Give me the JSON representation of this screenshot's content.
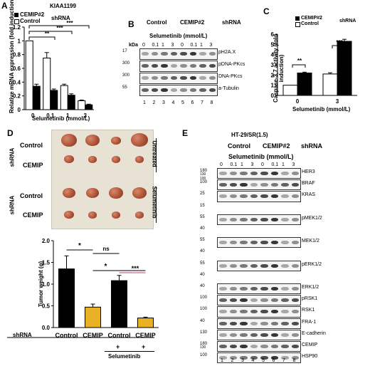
{
  "panels": {
    "A": {
      "letter": "A",
      "gene": "KIAA1199",
      "legend": [
        "CEMIP#2",
        "Control"
      ],
      "shrna_label": "shRNA",
      "ylabel": "Relative mRNA expression (fold induction)",
      "xlabel": "Selumetinib (mmol/L)",
      "yticks": [
        "1.2",
        "1",
        "0.8",
        "0.6",
        "0.4",
        "0.2",
        "0"
      ],
      "xticks": [
        "0",
        "0.1",
        "1",
        "3"
      ],
      "sig": [
        "**",
        "***",
        "***"
      ]
    },
    "B": {
      "letter": "B",
      "group_control": "Control",
      "group_cemip": "CEMIP#2",
      "shrna_label": "shRNA",
      "drug_label": "Selumetinib (mmol/L)",
      "doses": [
        "0",
        "0.1",
        "1",
        "3",
        "0",
        "0.1",
        "1",
        "3"
      ],
      "kda": "kDa",
      "rows": [
        {
          "mw": "17",
          "name": "pH2A.X"
        },
        {
          "mw": "300",
          "name": "pDNA-PKcs"
        },
        {
          "mw": "300",
          "name": "DNA-PKcs"
        },
        {
          "mw": "55",
          "name": "a-Tubulin"
        }
      ],
      "lanes": [
        "1",
        "2",
        "3",
        "4",
        "5",
        "6",
        "7",
        "8"
      ]
    },
    "C": {
      "letter": "C",
      "legend": [
        "CEMIP#2",
        "Control"
      ],
      "shrna_label": "shRNA",
      "ylabel": "Caspase-3,7 activity (fold induction)",
      "xlabel": "Selumetinib (mmol/L)",
      "yticks": [
        "6",
        "5",
        "4",
        "3",
        "2",
        "1",
        "0"
      ],
      "xticks": [
        "0",
        "3"
      ],
      "sig": [
        "**",
        "***"
      ]
    },
    "D": {
      "letter": "D",
      "photo_rows": [
        "Control",
        "CEMIP",
        "Control",
        "CEMIP"
      ],
      "shrna_vertical": "shRNA",
      "untreated": "Untreated",
      "selumetinib": "Selumetinib",
      "ylabel": "Tumor weight (g)",
      "yticks": [
        "2.0",
        "1.5",
        "1.0",
        "0.5",
        "0.0"
      ],
      "xcats": [
        "Control",
        "CEMIP",
        "Control",
        "CEMIP"
      ],
      "shrna_label": "shRNA",
      "plus": [
        "+",
        "+"
      ],
      "drug": "Selumetinib",
      "sig": [
        "*",
        "ns",
        "*",
        "***"
      ]
    },
    "E": {
      "letter": "E",
      "cell_line": "HT-29/SR(1.5)",
      "group_control": "Control",
      "group_cemip": "CEMIP#2",
      "shrna_label": "shRNA",
      "drug_label": "Selumetinib (mmol/L)",
      "doses": [
        "0",
        "0.1",
        "1",
        "3",
        "0",
        "0.1",
        "1",
        "3"
      ],
      "rows": [
        {
          "mw": "180",
          "mw2": "130",
          "mw3": "100",
          "name": "HER3"
        },
        {
          "mw": "100",
          "name": "BRAF"
        },
        {
          "mw": "25",
          "name": "KRAS"
        },
        {
          "mw": "15",
          "name": ""
        },
        {
          "mw": "55",
          "name": "pMEK1/2"
        },
        {
          "mw": "40",
          "name": ""
        },
        {
          "mw": "55",
          "name": "MEK1/2"
        },
        {
          "mw": "40",
          "name": ""
        },
        {
          "mw": "55",
          "name": "pERK1/2"
        },
        {
          "mw": "40",
          "name": ""
        },
        {
          "mw": "40",
          "name": "ERK1/2"
        },
        {
          "mw": "100",
          "name": "pRSK1"
        },
        {
          "mw": "100",
          "name": "RSK1"
        },
        {
          "mw": "40",
          "name": "FRA-1"
        },
        {
          "mw": "130",
          "name": "E-cadherin"
        },
        {
          "mw": "180",
          "mw2": "130",
          "name": "CEMIP"
        },
        {
          "mw": "100",
          "name": "HSP90"
        }
      ],
      "lanes": [
        "1",
        "2",
        "3",
        "4",
        "5",
        "6",
        "7",
        "8"
      ]
    }
  },
  "chart_data": [
    {
      "type": "bar",
      "panel": "A",
      "categories": [
        "0",
        "0.1",
        "1",
        "3"
      ],
      "series": [
        {
          "name": "Control",
          "values": [
            1.0,
            0.75,
            0.35,
            0.13
          ],
          "errors": [
            0.0,
            0.08,
            0.02,
            0.01
          ]
        },
        {
          "name": "CEMIP#2",
          "values": [
            0.34,
            0.28,
            0.21,
            0.07
          ],
          "errors": [
            0.03,
            0.02,
            0.02,
            0.01
          ]
        }
      ],
      "ylim": [
        0,
        1.2
      ],
      "colors": {
        "Control": "#ffffff",
        "CEMIP#2": "#000000"
      }
    },
    {
      "type": "bar",
      "panel": "C",
      "categories": [
        "0",
        "3"
      ],
      "series": [
        {
          "name": "Control",
          "values": [
            1.0,
            2.1
          ],
          "errors": [
            0.0,
            0.12
          ]
        },
        {
          "name": "CEMIP#2",
          "values": [
            2.2,
            5.3
          ],
          "errors": [
            0.08,
            0.2
          ]
        }
      ],
      "ylim": [
        0,
        6
      ],
      "colors": {
        "Control": "#ffffff",
        "CEMIP#2": "#000000"
      }
    },
    {
      "type": "bar",
      "panel": "D",
      "categories": [
        "Control",
        "CEMIP",
        "Control +Selumetinib",
        "CEMIP +Selumetinib"
      ],
      "values": [
        1.35,
        0.47,
        1.08,
        0.22
      ],
      "errors": [
        0.3,
        0.07,
        0.12,
        0.02
      ],
      "colors": [
        "#000000",
        "#e8b126",
        "#000000",
        "#e8b126"
      ],
      "ylim": [
        0,
        2.0
      ]
    }
  ]
}
